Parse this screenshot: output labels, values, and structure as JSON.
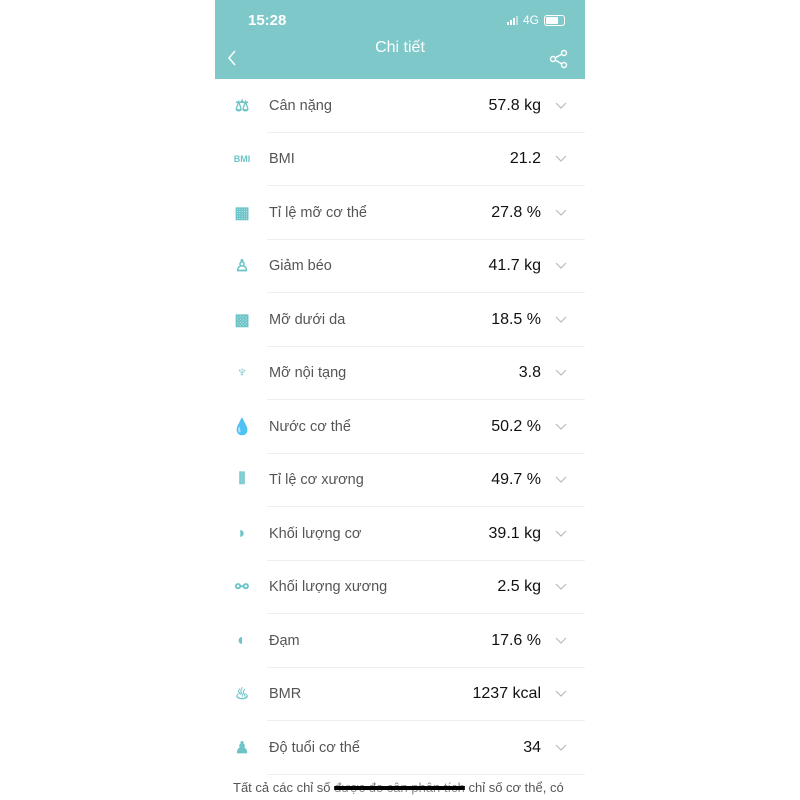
{
  "status_bar": {
    "time": "15:28",
    "network": "4G"
  },
  "header": {
    "title": "Chi tiết"
  },
  "metrics": [
    {
      "label": "Cân nặng",
      "value": "57.8 kg",
      "icon": "weight-icon"
    },
    {
      "label": "BMI",
      "value": "21.2",
      "icon": "bmi-icon",
      "icon_text": "BMI"
    },
    {
      "label": "Tỉ lệ mỡ cơ thể",
      "value": "27.8 %",
      "icon": "body-fat-icon"
    },
    {
      "label": "Giảm béo",
      "value": "41.7 kg",
      "icon": "person-icon"
    },
    {
      "label": "Mỡ dưới da",
      "value": "18.5 %",
      "icon": "subcutaneous-fat-icon"
    },
    {
      "label": "Mỡ nội tạng",
      "value": "3.8",
      "icon": "lungs-icon"
    },
    {
      "label": "Nước cơ thể",
      "value": "50.2 %",
      "icon": "water-drop-icon"
    },
    {
      "label": "Tỉ lệ cơ xương",
      "value": "49.7 %",
      "icon": "bone-joint-icon"
    },
    {
      "label": "Khối lượng cơ",
      "value": "39.1 kg",
      "icon": "muscle-icon"
    },
    {
      "label": "Khối lượng xương",
      "value": "2.5 kg",
      "icon": "bone-icon"
    },
    {
      "label": "Đạm",
      "value": "17.6 %",
      "icon": "protein-icon"
    },
    {
      "label": "BMR",
      "value": "1237 kcal",
      "icon": "flame-icon"
    },
    {
      "label": "Độ tuổi cơ thể",
      "value": "34",
      "icon": "body-icon"
    }
  ],
  "footer": {
    "text_start": "Tất cả các chỉ số ",
    "text_redacted": "được đo cân phân tích",
    "text_end": " chỉ số cơ thể, có"
  },
  "colors": {
    "accent": "#7ec8ca",
    "icon": "#6cc4c8"
  }
}
